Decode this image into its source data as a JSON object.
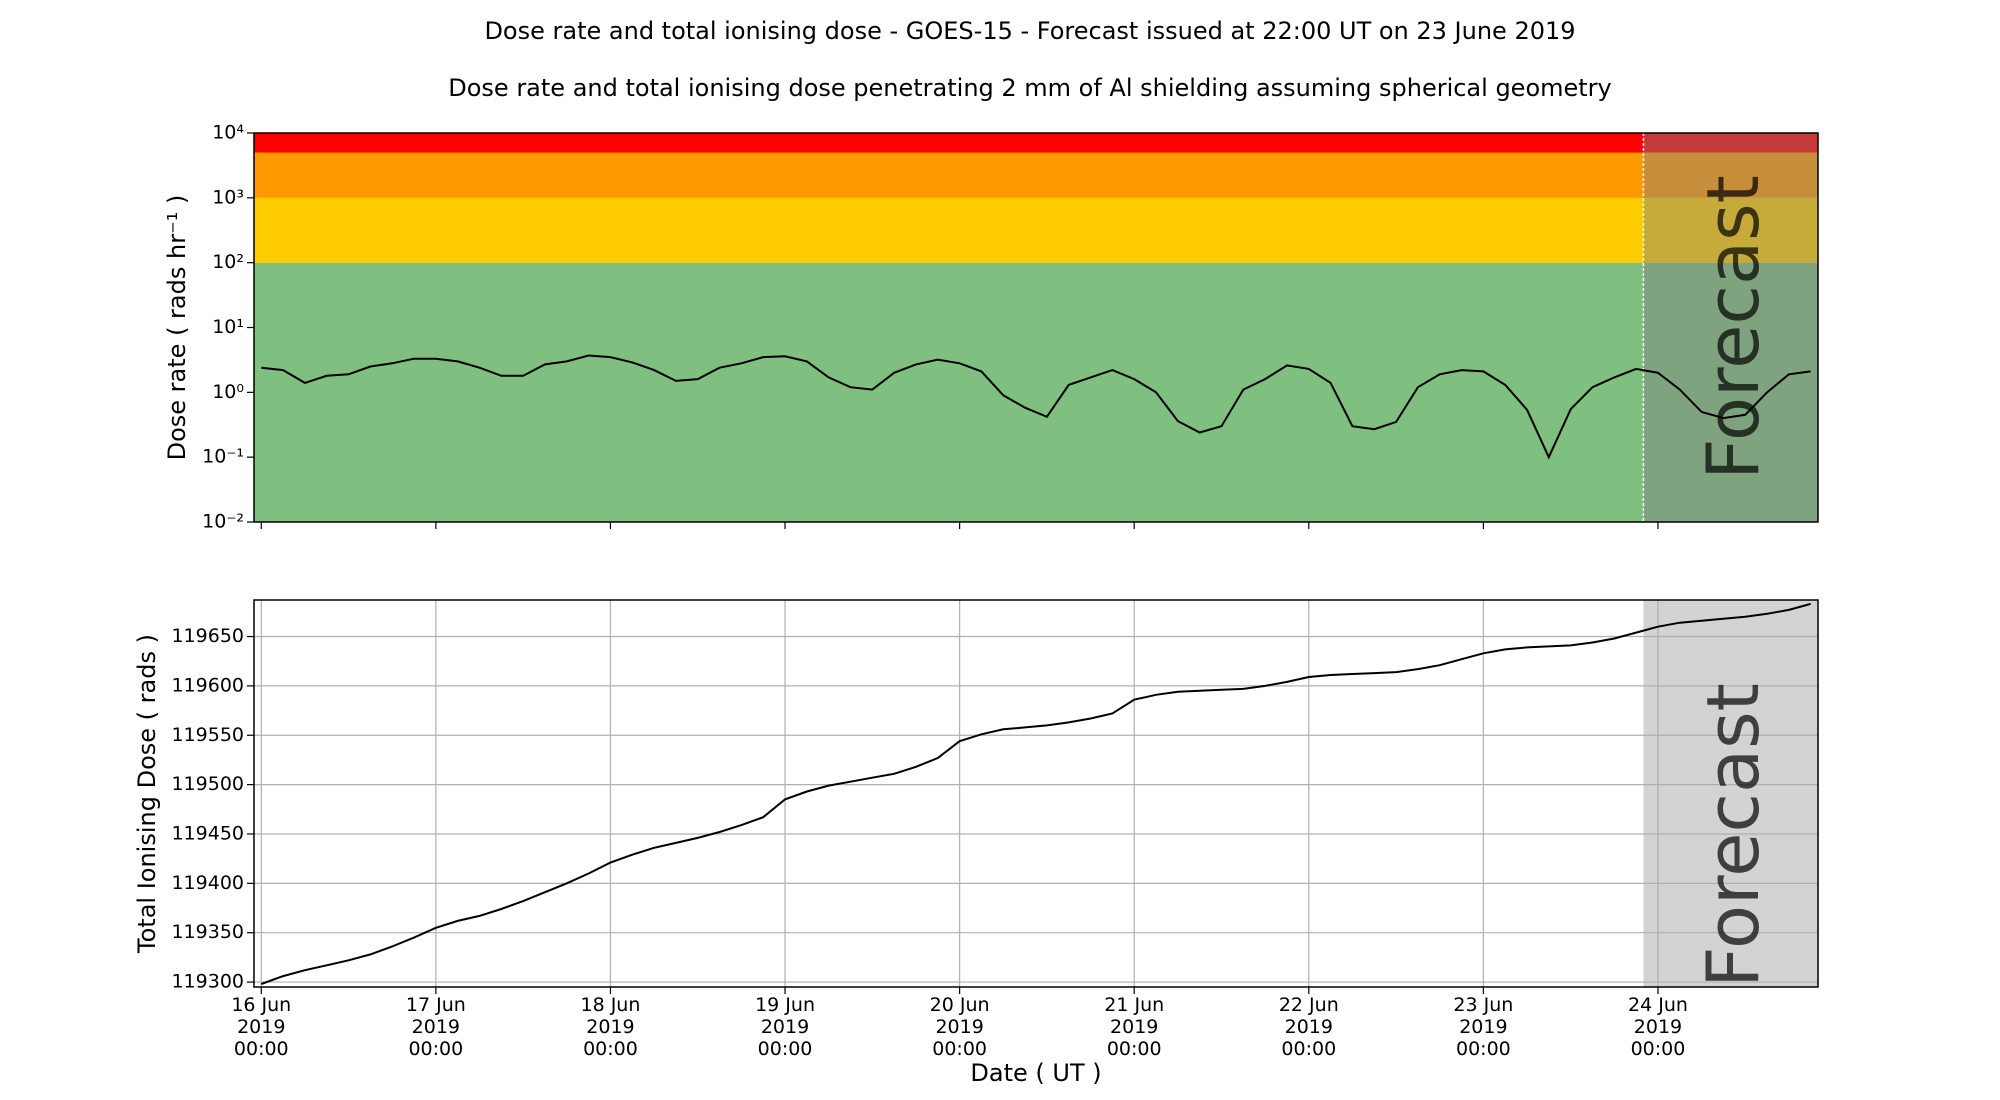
{
  "chart_data": [
    {
      "type": "line",
      "title": "Dose rate and total ionising dose - GOES-15 - Forecast issued at 22:00 UT on 23 June 2019",
      "subtitle": "Dose rate and total ionising dose penetrating 2 mm of Al shielding assuming spherical geometry",
      "ylabel": "Dose rate ( rads hr⁻¹ )",
      "yscale": "log",
      "color": "#000000",
      "grid": false,
      "xlim": [
        "2019-06-15 23:00",
        "2019-06-24 22:00"
      ],
      "ylim": [
        0.01,
        10000
      ],
      "yticks": [
        {
          "value": 0.01,
          "label": "10⁻²"
        },
        {
          "value": 0.1,
          "label": "10⁻¹"
        },
        {
          "value": 1,
          "label": "10⁰"
        },
        {
          "value": 10,
          "label": "10¹"
        },
        {
          "value": 100,
          "label": "10²"
        },
        {
          "value": 1000,
          "label": "10³"
        },
        {
          "value": 10000,
          "label": "10⁴"
        }
      ],
      "xticks": [
        "2019-06-16 00:00",
        "2019-06-17 00:00",
        "2019-06-18 00:00",
        "2019-06-19 00:00",
        "2019-06-20 00:00",
        "2019-06-21 00:00",
        "2019-06-22 00:00",
        "2019-06-23 00:00",
        "2019-06-24 00:00"
      ],
      "bands": [
        {
          "from": 0.01,
          "to": 100,
          "color": "#7fbf7f"
        },
        {
          "from": 100,
          "to": 1000,
          "color": "#ffcc00"
        },
        {
          "from": 1000,
          "to": 5000,
          "color": "#ff9900"
        },
        {
          "from": 5000,
          "to": 10000,
          "color": "#ff0000"
        }
      ],
      "forecast_start": "2019-06-23 22:00",
      "forecast_label": "Forecast",
      "x": [
        "2019-06-16 00:00",
        "2019-06-16 03:00",
        "2019-06-16 06:00",
        "2019-06-16 09:00",
        "2019-06-16 12:00",
        "2019-06-16 15:00",
        "2019-06-16 18:00",
        "2019-06-16 21:00",
        "2019-06-17 00:00",
        "2019-06-17 03:00",
        "2019-06-17 06:00",
        "2019-06-17 09:00",
        "2019-06-17 12:00",
        "2019-06-17 15:00",
        "2019-06-17 18:00",
        "2019-06-17 21:00",
        "2019-06-18 00:00",
        "2019-06-18 03:00",
        "2019-06-18 06:00",
        "2019-06-18 09:00",
        "2019-06-18 12:00",
        "2019-06-18 15:00",
        "2019-06-18 18:00",
        "2019-06-18 21:00",
        "2019-06-19 00:00",
        "2019-06-19 03:00",
        "2019-06-19 06:00",
        "2019-06-19 09:00",
        "2019-06-19 12:00",
        "2019-06-19 15:00",
        "2019-06-19 18:00",
        "2019-06-19 21:00",
        "2019-06-20 00:00",
        "2019-06-20 03:00",
        "2019-06-20 06:00",
        "2019-06-20 09:00",
        "2019-06-20 12:00",
        "2019-06-20 15:00",
        "2019-06-20 18:00",
        "2019-06-20 21:00",
        "2019-06-21 00:00",
        "2019-06-21 03:00",
        "2019-06-21 06:00",
        "2019-06-21 09:00",
        "2019-06-21 12:00",
        "2019-06-21 15:00",
        "2019-06-21 18:00",
        "2019-06-21 21:00",
        "2019-06-22 00:00",
        "2019-06-22 03:00",
        "2019-06-22 06:00",
        "2019-06-22 09:00",
        "2019-06-22 12:00",
        "2019-06-22 15:00",
        "2019-06-22 18:00",
        "2019-06-22 21:00",
        "2019-06-23 00:00",
        "2019-06-23 03:00",
        "2019-06-23 06:00",
        "2019-06-23 09:00",
        "2019-06-23 12:00",
        "2019-06-23 15:00",
        "2019-06-23 18:00",
        "2019-06-23 21:00",
        "2019-06-24 00:00",
        "2019-06-24 03:00",
        "2019-06-24 06:00",
        "2019-06-24 09:00",
        "2019-06-24 12:00",
        "2019-06-24 15:00",
        "2019-06-24 18:00",
        "2019-06-24 21:00"
      ],
      "values": [
        2.4,
        2.2,
        1.4,
        1.8,
        1.9,
        2.5,
        2.8,
        3.3,
        3.3,
        3.0,
        2.4,
        1.8,
        1.8,
        2.7,
        3.0,
        3.7,
        3.5,
        2.9,
        2.2,
        1.5,
        1.6,
        2.4,
        2.8,
        3.5,
        3.6,
        3.0,
        1.7,
        1.2,
        1.1,
        2.0,
        2.7,
        3.2,
        2.8,
        2.1,
        0.9,
        0.58,
        0.42,
        1.3,
        1.7,
        2.2,
        1.6,
        1.0,
        0.36,
        0.24,
        0.3,
        1.1,
        1.6,
        2.6,
        2.3,
        1.4,
        0.3,
        0.27,
        0.35,
        1.2,
        1.9,
        2.2,
        2.1,
        1.3,
        0.54,
        0.1,
        0.55,
        1.2,
        1.7,
        2.3,
        2.0,
        1.1,
        0.5,
        0.4,
        0.45,
        1.0,
        1.9,
        2.1
      ]
    },
    {
      "type": "line",
      "ylabel": "Total Ionising Dose ( rads )",
      "xlabel": "Date ( UT )",
      "color": "#000000",
      "grid": true,
      "xlim": [
        "2019-06-15 23:00",
        "2019-06-24 22:00"
      ],
      "ylim": [
        119295,
        119687
      ],
      "yticks": [
        119300,
        119350,
        119400,
        119450,
        119500,
        119550,
        119600,
        119650
      ],
      "xticks": [
        {
          "value": "2019-06-16 00:00",
          "label": [
            "16 Jun",
            "2019",
            "00:00"
          ]
        },
        {
          "value": "2019-06-17 00:00",
          "label": [
            "17 Jun",
            "2019",
            "00:00"
          ]
        },
        {
          "value": "2019-06-18 00:00",
          "label": [
            "18 Jun",
            "2019",
            "00:00"
          ]
        },
        {
          "value": "2019-06-19 00:00",
          "label": [
            "19 Jun",
            "2019",
            "00:00"
          ]
        },
        {
          "value": "2019-06-20 00:00",
          "label": [
            "20 Jun",
            "2019",
            "00:00"
          ]
        },
        {
          "value": "2019-06-21 00:00",
          "label": [
            "21 Jun",
            "2019",
            "00:00"
          ]
        },
        {
          "value": "2019-06-22 00:00",
          "label": [
            "22 Jun",
            "2019",
            "00:00"
          ]
        },
        {
          "value": "2019-06-23 00:00",
          "label": [
            "23 Jun",
            "2019",
            "00:00"
          ]
        },
        {
          "value": "2019-06-24 00:00",
          "label": [
            "24 Jun",
            "2019",
            "00:00"
          ]
        }
      ],
      "forecast_start": "2019-06-23 22:00",
      "forecast_label": "Forecast",
      "forecast_color": "#d3d3d3",
      "x": [
        "2019-06-16 00:00",
        "2019-06-16 03:00",
        "2019-06-16 06:00",
        "2019-06-16 09:00",
        "2019-06-16 12:00",
        "2019-06-16 15:00",
        "2019-06-16 18:00",
        "2019-06-16 21:00",
        "2019-06-17 00:00",
        "2019-06-17 03:00",
        "2019-06-17 06:00",
        "2019-06-17 09:00",
        "2019-06-17 12:00",
        "2019-06-17 15:00",
        "2019-06-17 18:00",
        "2019-06-17 21:00",
        "2019-06-18 00:00",
        "2019-06-18 03:00",
        "2019-06-18 06:00",
        "2019-06-18 09:00",
        "2019-06-18 12:00",
        "2019-06-18 15:00",
        "2019-06-18 18:00",
        "2019-06-18 21:00",
        "2019-06-19 00:00",
        "2019-06-19 03:00",
        "2019-06-19 06:00",
        "2019-06-19 09:00",
        "2019-06-19 12:00",
        "2019-06-19 15:00",
        "2019-06-19 18:00",
        "2019-06-19 21:00",
        "2019-06-20 00:00",
        "2019-06-20 03:00",
        "2019-06-20 06:00",
        "2019-06-20 09:00",
        "2019-06-20 12:00",
        "2019-06-20 15:00",
        "2019-06-20 18:00",
        "2019-06-20 21:00",
        "2019-06-21 00:00",
        "2019-06-21 03:00",
        "2019-06-21 06:00",
        "2019-06-21 09:00",
        "2019-06-21 12:00",
        "2019-06-21 15:00",
        "2019-06-21 18:00",
        "2019-06-21 21:00",
        "2019-06-22 00:00",
        "2019-06-22 03:00",
        "2019-06-22 06:00",
        "2019-06-22 09:00",
        "2019-06-22 12:00",
        "2019-06-22 15:00",
        "2019-06-22 18:00",
        "2019-06-22 21:00",
        "2019-06-23 00:00",
        "2019-06-23 03:00",
        "2019-06-23 06:00",
        "2019-06-23 09:00",
        "2019-06-23 12:00",
        "2019-06-23 15:00",
        "2019-06-23 18:00",
        "2019-06-23 21:00",
        "2019-06-24 00:00",
        "2019-06-24 03:00",
        "2019-06-24 06:00",
        "2019-06-24 09:00",
        "2019-06-24 12:00",
        "2019-06-24 15:00",
        "2019-06-24 18:00",
        "2019-06-24 21:00"
      ],
      "values": [
        119298,
        119306,
        119312,
        119317,
        119322,
        119328,
        119336,
        119345,
        119355,
        119362,
        119367,
        119374,
        119382,
        119391,
        119400,
        119410,
        119421,
        119429,
        119436,
        119441,
        119446,
        119452,
        119459,
        119467,
        119485,
        119493,
        119499,
        119503,
        119507,
        119511,
        119518,
        119527,
        119544,
        119551,
        119556,
        119558,
        119560,
        119563,
        119567,
        119572,
        119586,
        119591,
        119594,
        119595,
        119596,
        119597,
        119600,
        119604,
        119609,
        119611,
        119612,
        119613,
        119614,
        119617,
        119621,
        119627,
        119633,
        119637,
        119639,
        119640,
        119641,
        119644,
        119648,
        119654,
        119660,
        119664,
        119666,
        119668,
        119670,
        119673,
        119677,
        119683
      ]
    }
  ]
}
